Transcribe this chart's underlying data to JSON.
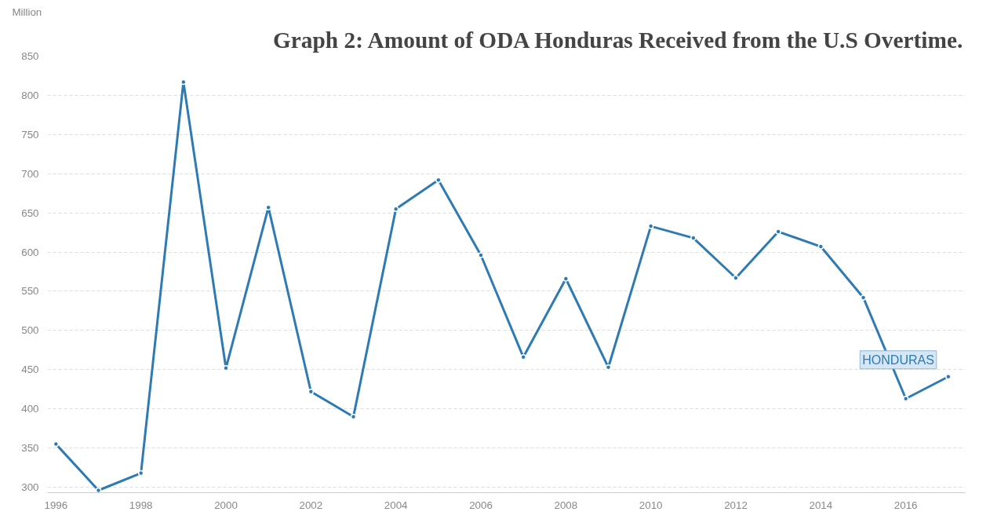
{
  "chart_data": {
    "type": "line",
    "title": "Graph 2: Amount of ODA Honduras Received from the U.S Overtime.",
    "ylabel": "Million",
    "x": [
      1996,
      1997,
      1998,
      1999,
      2000,
      2001,
      2002,
      2003,
      2004,
      2005,
      2006,
      2007,
      2008,
      2009,
      2010,
      2011,
      2012,
      2013,
      2014,
      2015,
      2016,
      2017
    ],
    "series": [
      {
        "name": "HONDURAS",
        "color": "#2e7bb4",
        "values": [
          355,
          296,
          318,
          817,
          452,
          657,
          422,
          390,
          655,
          692,
          596,
          466,
          566,
          453,
          633,
          618,
          567,
          626,
          607,
          542,
          413,
          441
        ]
      }
    ],
    "xlim": [
      1995.8,
      2017.4
    ],
    "xticks": [
      1996,
      1998,
      2000,
      2002,
      2004,
      2006,
      2008,
      2010,
      2012,
      2014,
      2016
    ],
    "ylim": [
      293,
      850
    ],
    "yticks": [
      300,
      350,
      400,
      450,
      500,
      550,
      600,
      650,
      700,
      750,
      800,
      850
    ],
    "grid": "y",
    "marker": "circle",
    "line_style": "solid"
  }
}
